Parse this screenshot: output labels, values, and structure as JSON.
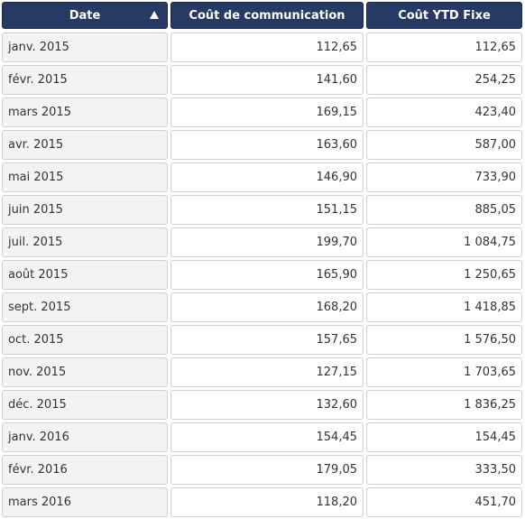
{
  "table": {
    "columns": [
      {
        "label": "Date",
        "sort": "ascending",
        "sort_icon": "triangle-up-icon"
      },
      {
        "label": "Coût de communication"
      },
      {
        "label": "Coût YTD Fixe"
      }
    ],
    "rows": [
      {
        "date": "janv. 2015",
        "cost": "112,65",
        "ytd": "112,65"
      },
      {
        "date": "févr. 2015",
        "cost": "141,60",
        "ytd": "254,25"
      },
      {
        "date": "mars 2015",
        "cost": "169,15",
        "ytd": "423,40"
      },
      {
        "date": "avr. 2015",
        "cost": "163,60",
        "ytd": "587,00"
      },
      {
        "date": "mai 2015",
        "cost": "146,90",
        "ytd": "733,90"
      },
      {
        "date": "juin 2015",
        "cost": "151,15",
        "ytd": "885,05"
      },
      {
        "date": "juil. 2015",
        "cost": "199,70",
        "ytd": "1 084,75"
      },
      {
        "date": "août 2015",
        "cost": "165,90",
        "ytd": "1 250,65"
      },
      {
        "date": "sept. 2015",
        "cost": "168,20",
        "ytd": "1 418,85"
      },
      {
        "date": "oct. 2015",
        "cost": "157,65",
        "ytd": "1 576,50"
      },
      {
        "date": "nov. 2015",
        "cost": "127,15",
        "ytd": "1 703,65"
      },
      {
        "date": "déc. 2015",
        "cost": "132,60",
        "ytd": "1 836,25"
      },
      {
        "date": "janv. 2016",
        "cost": "154,45",
        "ytd": "154,45"
      },
      {
        "date": "févr. 2016",
        "cost": "179,05",
        "ytd": "333,50"
      },
      {
        "date": "mars 2016",
        "cost": "118,20",
        "ytd": "451,70"
      }
    ]
  },
  "colors": {
    "header_bg": "#263a63",
    "header_text": "#ffffff",
    "date_cell_bg": "#f3f3f3",
    "cell_border": "#cfcfcf"
  }
}
